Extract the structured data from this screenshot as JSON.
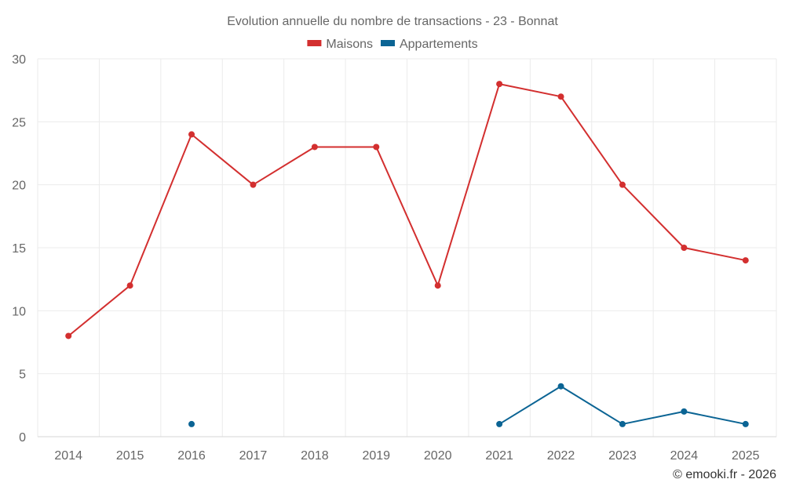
{
  "chart_data": {
    "type": "line",
    "title": "Evolution annuelle du nombre de transactions - 23 - Bonnat",
    "xlabel": "",
    "ylabel": "",
    "categories": [
      "2014",
      "2015",
      "2016",
      "2017",
      "2018",
      "2019",
      "2020",
      "2021",
      "2022",
      "2023",
      "2024",
      "2025"
    ],
    "ylim": [
      0,
      30
    ],
    "yticks": [
      0,
      5,
      10,
      15,
      20,
      25,
      30
    ],
    "grid": true,
    "legend_position": "top-center",
    "series": [
      {
        "name": "Maisons",
        "color": "#d32f2f",
        "values": [
          8,
          12,
          24,
          20,
          23,
          23,
          12,
          28,
          27,
          20,
          15,
          14
        ]
      },
      {
        "name": "Appartements",
        "color": "#0b6494",
        "values": [
          null,
          null,
          1,
          null,
          null,
          null,
          null,
          1,
          4,
          1,
          2,
          1
        ]
      }
    ]
  },
  "credit": "© emooki.fr - 2026"
}
